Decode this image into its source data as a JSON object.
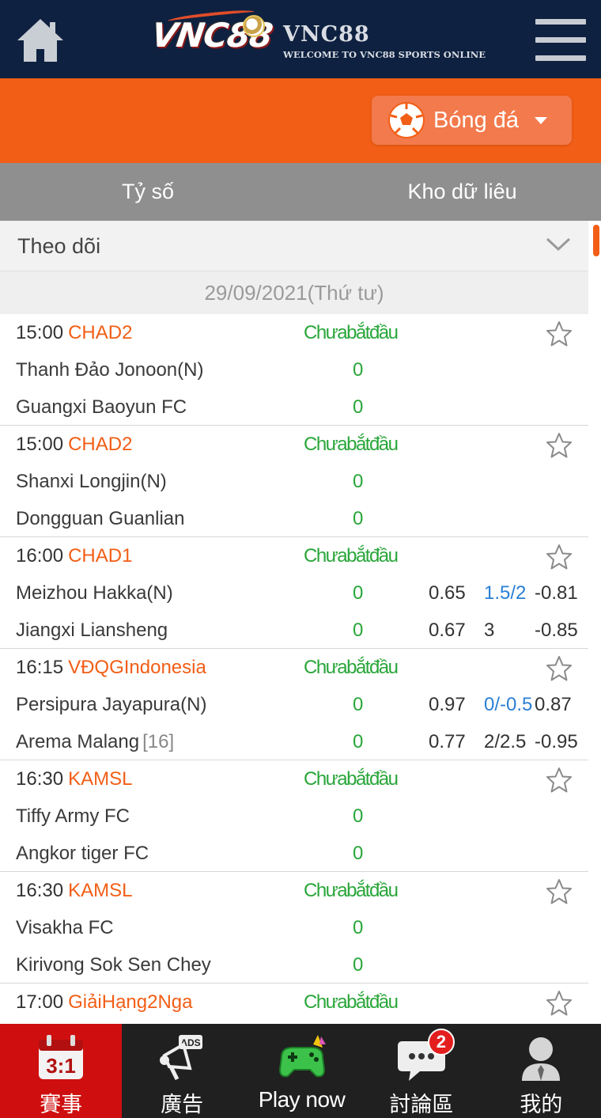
{
  "header": {
    "logo_mark": "VNC88",
    "logo_name": "VNC88",
    "logo_tagline": "WELCOME TO VNC88 SPORTS ONLINE",
    "home_icon": "home-icon",
    "menu_icon": "hamburger-menu-icon"
  },
  "sport_selector": {
    "label": "Bóng đá",
    "icon": "soccer-ball-icon"
  },
  "tabs": [
    {
      "label": "Tỷ số"
    },
    {
      "label": "Kho dữ liêu"
    }
  ],
  "follow": {
    "label": "Theo dõi"
  },
  "date_label": "29/09/2021(Thứ tư)",
  "matches": [
    {
      "time": "15:00",
      "league": "CHAD2",
      "status": "Chưabắtđầu",
      "home": "Thanh Đảo Jonoon(N)",
      "home_rank": "",
      "home_score": "0",
      "away": "Guangxi Baoyun FC",
      "away_rank": "",
      "away_score": "0",
      "odds_home": [
        "",
        "",
        ""
      ],
      "odds_away": [
        "",
        "",
        ""
      ]
    },
    {
      "time": "15:00",
      "league": "CHAD2",
      "status": "Chưabắtđầu",
      "home": "Shanxi Longjin(N)",
      "home_rank": "",
      "home_score": "0",
      "away": "Dongguan Guanlian",
      "away_rank": "",
      "away_score": "0",
      "odds_home": [
        "",
        "",
        ""
      ],
      "odds_away": [
        "",
        "",
        ""
      ]
    },
    {
      "time": "16:00",
      "league": "CHAD1",
      "status": "Chưabắtđầu",
      "home": "Meizhou Hakka(N)",
      "home_rank": "",
      "home_score": "0",
      "away": "Jiangxi Liansheng",
      "away_rank": "",
      "away_score": "0",
      "odds_home": [
        "0.65",
        "1.5/2",
        "-0.81"
      ],
      "odds_away": [
        "0.67",
        "3",
        "-0.85"
      ]
    },
    {
      "time": "16:15",
      "league": "VĐQGIndonesia",
      "status": "Chưabắtđầu",
      "home": "Persipura Jayapura(N)",
      "home_rank": "",
      "home_score": "0",
      "away": "Arema Malang",
      "away_rank": "[16]",
      "away_score": "0",
      "odds_home": [
        "0.97",
        "0/-0.5",
        "0.87"
      ],
      "odds_away": [
        "0.77",
        "2/2.5",
        "-0.95"
      ]
    },
    {
      "time": "16:30",
      "league": "KAMSL",
      "status": "Chưabắtđầu",
      "home": "Tiffy Army FC",
      "home_rank": "",
      "home_score": "0",
      "away": "Angkor tiger FC",
      "away_rank": "",
      "away_score": "0",
      "odds_home": [
        "",
        "",
        ""
      ],
      "odds_away": [
        "",
        "",
        ""
      ]
    },
    {
      "time": "16:30",
      "league": "KAMSL",
      "status": "Chưabắtđầu",
      "home": "Visakha FC",
      "home_rank": "",
      "home_score": "0",
      "away": "Kirivong Sok Sen Chey",
      "away_rank": "",
      "away_score": "0",
      "odds_home": [
        "",
        "",
        ""
      ],
      "odds_away": [
        "",
        "",
        ""
      ]
    },
    {
      "time": "17:00",
      "league": "GiảiHạng2Nga",
      "status": "Chưabắtđầu",
      "home": "",
      "home_rank": "",
      "home_score": "",
      "away": "",
      "away_rank": "",
      "away_score": "",
      "odds_home": [
        "",
        "",
        ""
      ],
      "odds_away": [
        "",
        "",
        ""
      ]
    }
  ],
  "bottom_nav": [
    {
      "label": "賽事",
      "icon": "calendar-score-icon",
      "icon_text": "3:1",
      "active": true
    },
    {
      "label": "廣告",
      "icon": "ads-megaphone-icon",
      "icon_text": "ADS"
    },
    {
      "label": "Play now",
      "icon": "gamepad-icon"
    },
    {
      "label": "討論區",
      "icon": "chat-bubble-icon",
      "badge": "2"
    },
    {
      "label": "我的",
      "icon": "user-profile-icon"
    }
  ],
  "colors": {
    "header_bg": "#0e2140",
    "accent_orange": "#f25e16",
    "tab_bg": "#8f8f8f",
    "status_green": "#2aa63a",
    "handicap_blue": "#2a7fd4",
    "nav_bg": "#202020",
    "nav_active": "#cf0f0f"
  }
}
